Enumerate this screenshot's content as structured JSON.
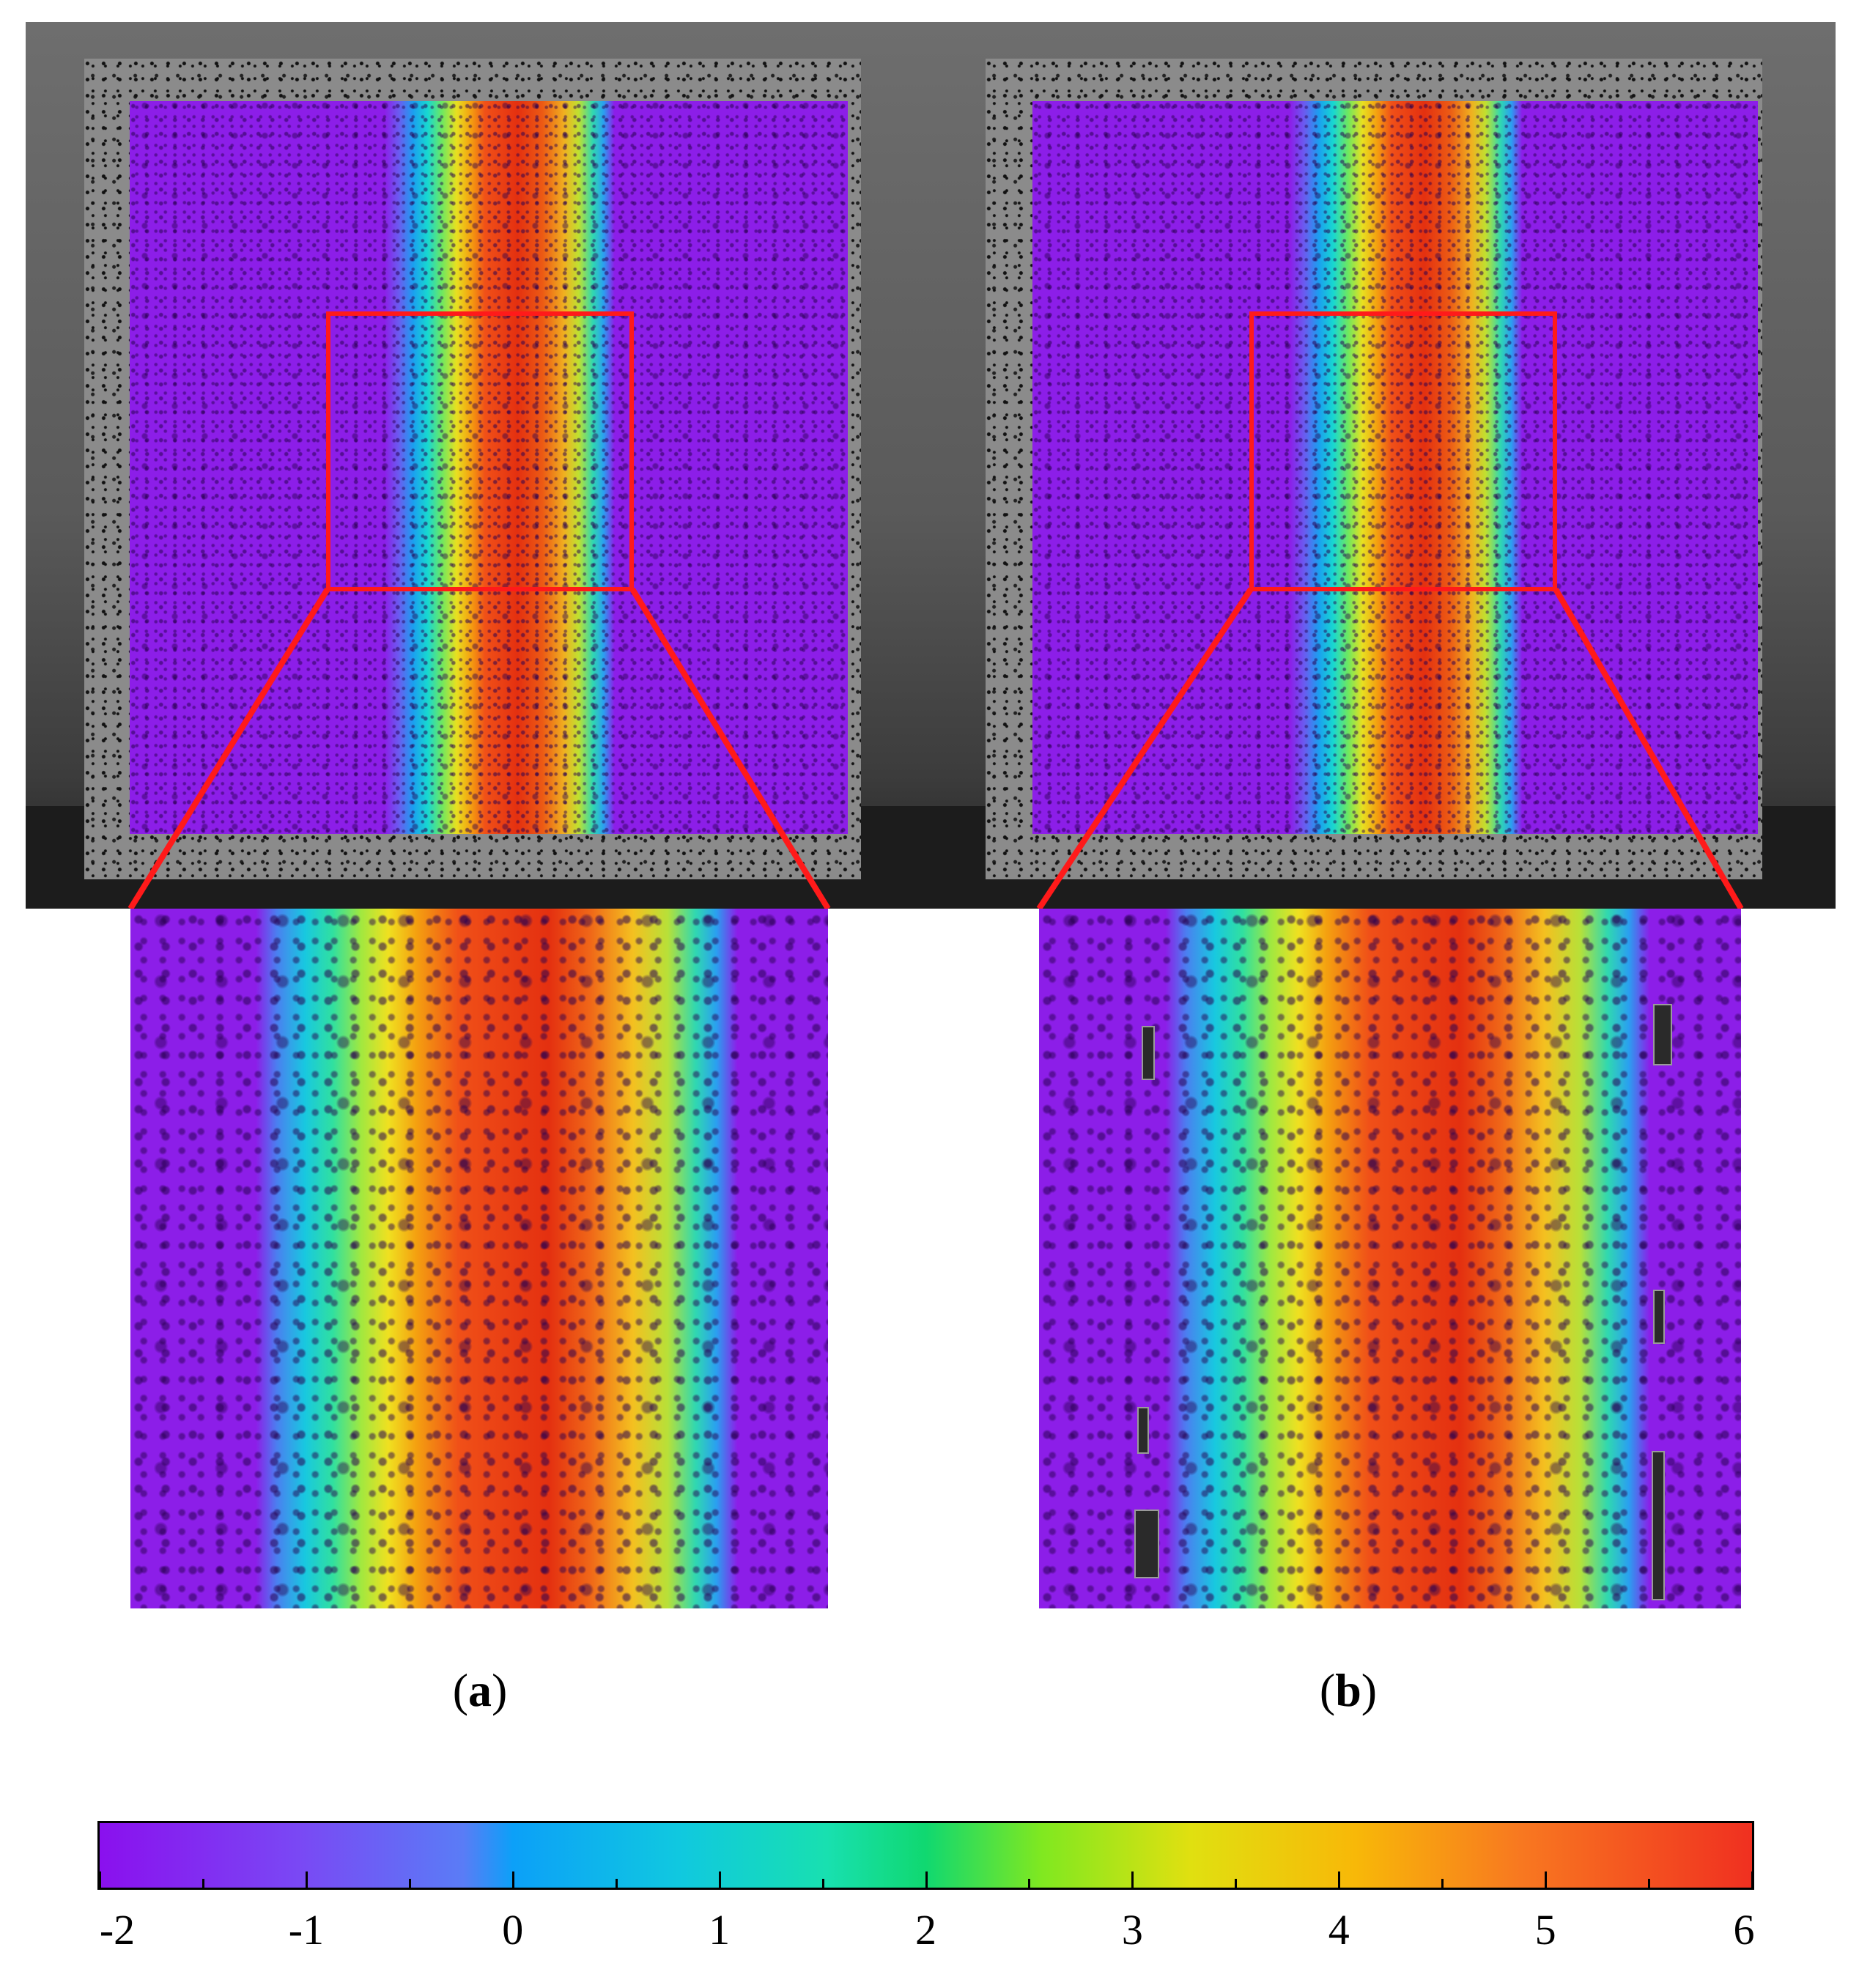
{
  "panels": [
    {
      "id": "a",
      "label_open": "(",
      "label_letter": "a",
      "label_close": ")"
    },
    {
      "id": "b",
      "label_open": "(",
      "label_letter": "b",
      "label_close": ")"
    }
  ],
  "colorbar": {
    "min": -2,
    "max": 6,
    "tick_labels": [
      "-2",
      "-1",
      "0",
      "1",
      "2",
      "3",
      "4",
      "5",
      "6"
    ],
    "colors": {
      "low": "#8a10ee",
      "mid": "#10d870",
      "high": "#f03020"
    }
  },
  "colors": {
    "roi_outline": "#ff1a1a",
    "background": "#ffffff"
  }
}
